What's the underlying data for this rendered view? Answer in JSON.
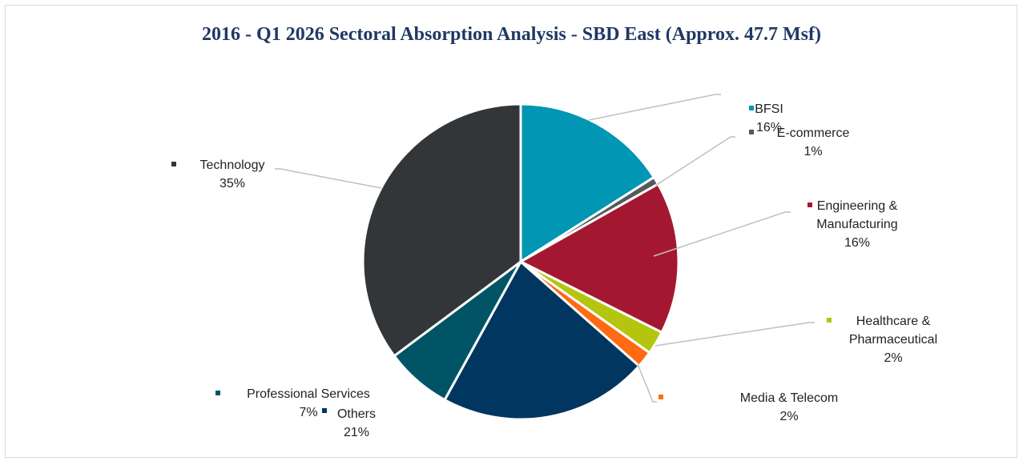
{
  "chart_data": {
    "type": "pie",
    "title": "2016 - Q1 2026 Sectoral Absorption Analysis - SBD East (Approx. 47.7 Msf)",
    "start_angle_deg": 0,
    "slices": [
      {
        "name": "BFSI",
        "name_lines": [
          "BFSI"
        ],
        "value": 16,
        "label": "16%",
        "color": "#0096b4"
      },
      {
        "name": "E-commerce",
        "name_lines": [
          "E-commerce"
        ],
        "value": 0.8,
        "label": "1%",
        "color": "#55595c"
      },
      {
        "name": "Engineering & Manufacturing",
        "name_lines": [
          "Engineering &",
          "Manufacturing"
        ],
        "value": 15.6,
        "label": "16%",
        "color": "#a31830"
      },
      {
        "name": "Healthcare & Pharmaceutical",
        "name_lines": [
          "Healthcare &",
          "Pharmaceutical"
        ],
        "value": 2.4,
        "label": "2%",
        "color": "#b5c40f"
      },
      {
        "name": "Media & Telecom",
        "name_lines": [
          "Media & Telecom"
        ],
        "value": 1.7,
        "label": "2%",
        "color": "#ff6a13"
      },
      {
        "name": "Others",
        "name_lines": [
          "Others"
        ],
        "value": 21.5,
        "label": "21%",
        "color": "#00365f"
      },
      {
        "name": "Professional Services",
        "name_lines": [
          "Professional Services"
        ],
        "value": 6.8,
        "label": "7%",
        "color": "#005466"
      },
      {
        "name": "Technology",
        "name_lines": [
          "Technology"
        ],
        "value": 35.2,
        "label": "35%",
        "color": "#333638"
      }
    ]
  }
}
